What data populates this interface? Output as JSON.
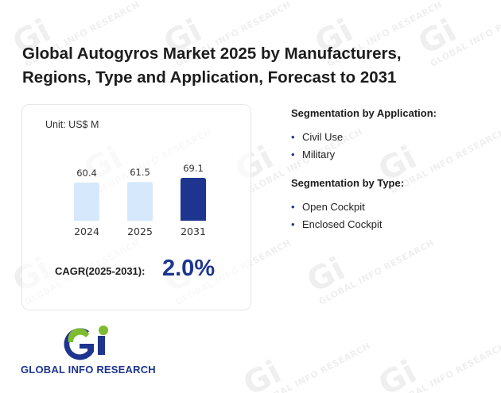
{
  "title": "Global Autogyros Market 2025 by Manufacturers, Regions, Type and Application, Forecast to 2031",
  "chart_data": {
    "type": "bar",
    "unit_label": "Unit: US$ M",
    "categories": [
      "2024",
      "2025",
      "2031"
    ],
    "values": [
      60.4,
      61.5,
      69.1
    ],
    "value_labels": [
      "60.4",
      "61.5",
      "69.1"
    ],
    "bar_colors": [
      "#d6e8fb",
      "#d6e8fb",
      "#1e3590"
    ],
    "ylim": [
      0,
      69.1
    ]
  },
  "cagr": {
    "label": "CAGR(2025-2031):",
    "value": "2.0%"
  },
  "segmentation": {
    "application": {
      "title": "Segmentation by Application:",
      "items": [
        "Civil Use",
        "Military"
      ]
    },
    "type": {
      "title": "Segmentation by Type:",
      "items": [
        "Open Cockpit",
        "Enclosed Cockpit"
      ]
    }
  },
  "logo": {
    "text": "GLOBAL INFO RESEARCH",
    "watermark_text": "GLOBAL INFO RESEARCH",
    "watermark_mark": "Gi"
  },
  "colors": {
    "accent": "#1e3590",
    "accent_light": "#d6e8fb",
    "logo_green": "#7dbb2f"
  }
}
